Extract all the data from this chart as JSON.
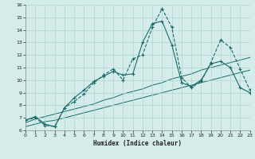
{
  "xlabel": "Humidex (Indice chaleur)",
  "xlim": [
    0,
    23
  ],
  "ylim": [
    6,
    16
  ],
  "yticks": [
    6,
    7,
    8,
    9,
    10,
    11,
    12,
    13,
    14,
    15,
    16
  ],
  "xticks": [
    0,
    1,
    2,
    3,
    4,
    5,
    6,
    7,
    8,
    9,
    10,
    11,
    12,
    13,
    14,
    15,
    16,
    17,
    18,
    19,
    20,
    21,
    22,
    23
  ],
  "bg_color": "#d4ecea",
  "grid_color": "#b0d4d0",
  "line_color": "#1a6b6b",
  "line_main_x": [
    0,
    1,
    2,
    3,
    4,
    5,
    6,
    7,
    8,
    9,
    10,
    11,
    12,
    13,
    14,
    15,
    16,
    17,
    18,
    19,
    20,
    21,
    22,
    23
  ],
  "line_main_y": [
    6.8,
    7.1,
    6.5,
    6.3,
    7.8,
    8.6,
    9.2,
    9.9,
    10.3,
    10.7,
    10.4,
    10.5,
    13.0,
    14.5,
    14.7,
    12.8,
    9.8,
    9.5,
    10.0,
    11.3,
    11.5,
    11.0,
    9.4,
    9.0
  ],
  "line_zigzag_x": [
    0,
    1,
    2,
    3,
    4,
    5,
    6,
    7,
    8,
    9,
    10,
    11,
    12,
    13,
    14,
    15,
    16,
    17,
    18,
    19,
    20,
    21,
    22,
    23
  ],
  "line_zigzag_y": [
    6.8,
    7.0,
    6.4,
    6.3,
    7.8,
    8.3,
    8.9,
    9.8,
    10.4,
    10.9,
    10.0,
    11.7,
    12.0,
    14.2,
    15.7,
    14.2,
    10.2,
    9.4,
    9.9,
    11.4,
    13.2,
    12.6,
    10.9,
    9.2
  ],
  "line_diag1_x": [
    0,
    1,
    2,
    3,
    4,
    5,
    6,
    7,
    8,
    9,
    10,
    11,
    12,
    13,
    14,
    15,
    16,
    17,
    18,
    19,
    20,
    21,
    22,
    23
  ],
  "line_diag1_y": [
    6.6,
    6.9,
    7.1,
    7.3,
    7.5,
    7.7,
    7.9,
    8.1,
    8.4,
    8.6,
    8.9,
    9.1,
    9.3,
    9.6,
    9.8,
    10.1,
    10.3,
    10.5,
    10.8,
    11.0,
    11.2,
    11.4,
    11.6,
    11.8
  ],
  "line_diag2_x": [
    0,
    1,
    2,
    3,
    4,
    5,
    6,
    7,
    8,
    9,
    10,
    11,
    12,
    13,
    14,
    15,
    16,
    17,
    18,
    19,
    20,
    21,
    22,
    23
  ],
  "line_diag2_y": [
    6.3,
    6.5,
    6.7,
    6.8,
    7.0,
    7.2,
    7.4,
    7.6,
    7.8,
    8.0,
    8.2,
    8.4,
    8.6,
    8.8,
    9.0,
    9.2,
    9.4,
    9.6,
    9.8,
    10.0,
    10.2,
    10.4,
    10.6,
    10.8
  ]
}
